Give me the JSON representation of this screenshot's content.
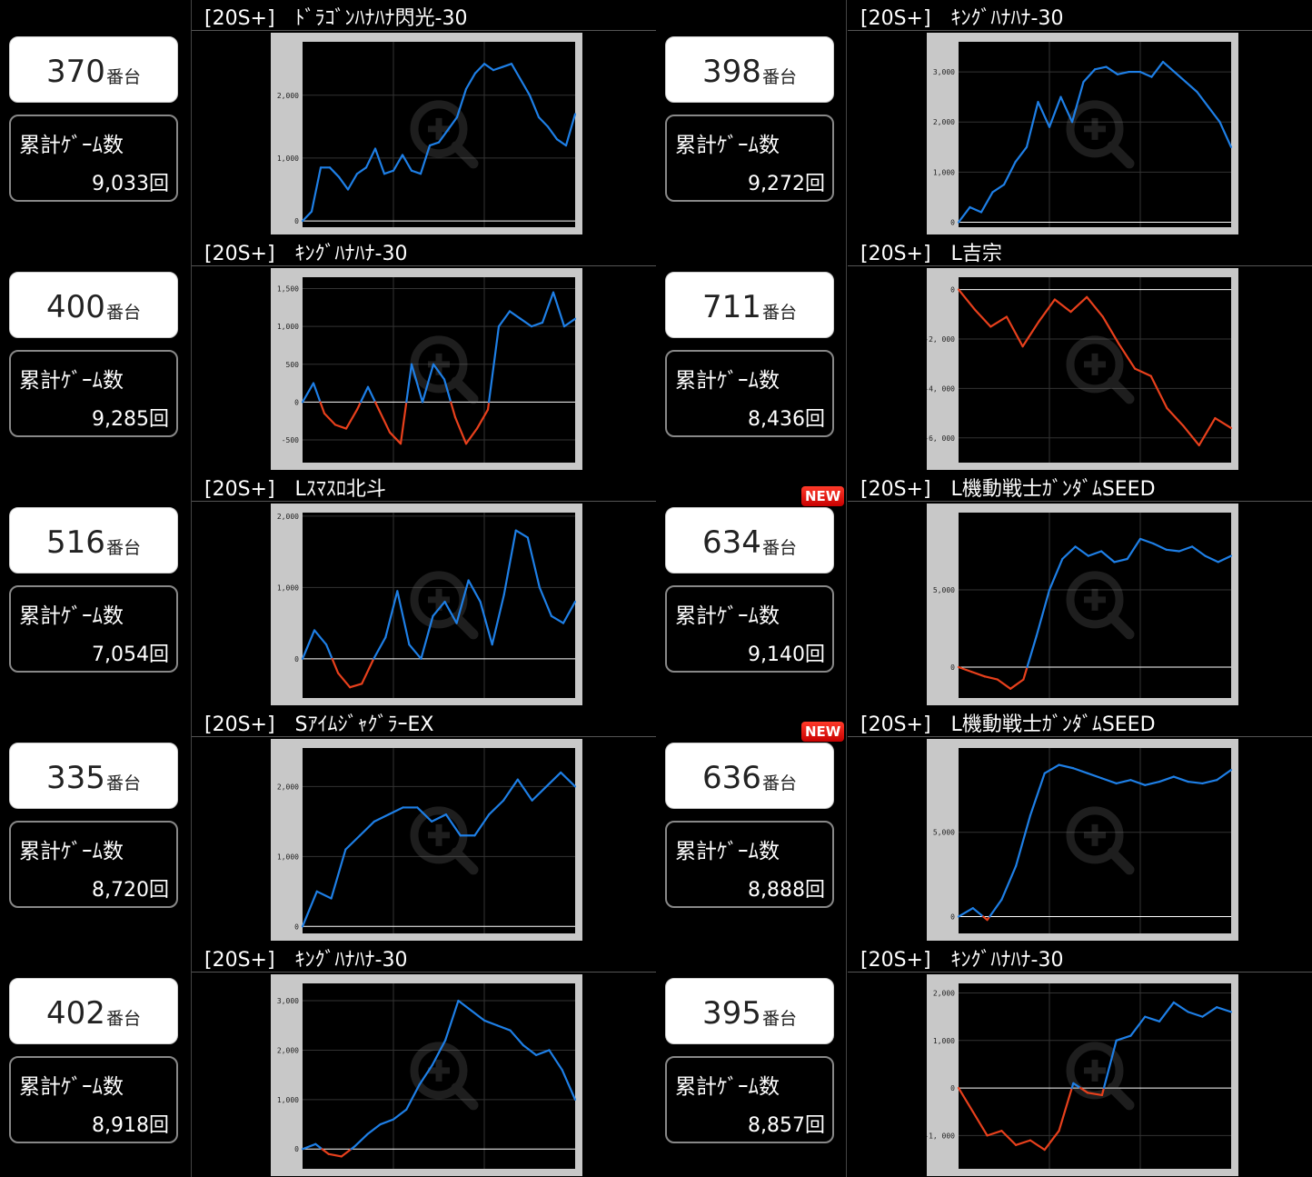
{
  "labels": {
    "games_label": "累計ｹﾞｰﾑ数",
    "unit_suffix": "番台",
    "count_suffix": "回",
    "new_badge": "NEW"
  },
  "colors": {
    "positive": "#1e7fe6",
    "negative": "#e8401c",
    "chart_bg": "#000000",
    "frame": "#c8c8c8"
  },
  "entries": [
    {
      "unit": "370",
      "games": "9,033",
      "title": "[20S+]　ﾄﾞﾗｺﾞﾝﾊﾅﾊﾅ閃光-30",
      "is_new": false,
      "chart_data": {
        "type": "line",
        "yticks": [
          0,
          1000,
          2000
        ],
        "ytick_labels": [
          "0",
          "1,000",
          "2,000"
        ],
        "ylim": [
          -100,
          2850
        ],
        "values": [
          0,
          150,
          850,
          850,
          700,
          500,
          750,
          850,
          1150,
          750,
          800,
          1050,
          800,
          750,
          1200,
          1250,
          1450,
          1650,
          2100,
          2350,
          2500,
          2400,
          2450,
          2500,
          2250,
          2000,
          1650,
          1500,
          1300,
          1200,
          1700
        ]
      }
    },
    {
      "unit": "398",
      "games": "9,272",
      "title": "[20S+]　ｷﾝｸﾞﾊﾅﾊﾅ-30",
      "is_new": false,
      "chart_data": {
        "type": "line",
        "yticks": [
          0,
          1000,
          2000,
          3000
        ],
        "ytick_labels": [
          "0",
          "1,000",
          "2,000",
          "3,000"
        ],
        "ylim": [
          -100,
          3600
        ],
        "values": [
          0,
          300,
          200,
          600,
          750,
          1200,
          1500,
          2400,
          1900,
          2500,
          2000,
          2800,
          3050,
          3100,
          2950,
          3000,
          3000,
          2900,
          3200,
          3000,
          2800,
          2600,
          2300,
          2000,
          1500
        ]
      }
    },
    {
      "unit": "400",
      "games": "9,285",
      "title": "[20S+]　ｷﾝｸﾞﾊﾅﾊﾅ-30",
      "is_new": false,
      "chart_data": {
        "type": "line",
        "yticks": [
          -500,
          0,
          500,
          1000,
          1500
        ],
        "ytick_labels": [
          "-500",
          "0",
          "500",
          "1,000",
          "1,500"
        ],
        "ylim": [
          -800,
          1650
        ],
        "values": [
          0,
          250,
          -150,
          -300,
          -350,
          -100,
          200,
          -100,
          -400,
          -550,
          500,
          0,
          500,
          300,
          -200,
          -550,
          -350,
          -100,
          1000,
          1200,
          1100,
          1000,
          1050,
          1450,
          1000,
          1100
        ]
      }
    },
    {
      "unit": "711",
      "games": "8,436",
      "title": "[20S+]　L吉宗",
      "is_new": false,
      "chart_data": {
        "type": "line",
        "yticks": [
          -6000,
          -4000,
          -2000,
          0
        ],
        "ytick_labels": [
          "-6, 000",
          "-4, 000",
          "-2, 000",
          "0"
        ],
        "ylim": [
          -7000,
          500
        ],
        "values": [
          0,
          -800,
          -1500,
          -1100,
          -2300,
          -1300,
          -400,
          -900,
          -300,
          -1100,
          -2200,
          -3200,
          -3500,
          -4800,
          -5500,
          -6300,
          -5200,
          -5600
        ]
      }
    },
    {
      "unit": "516",
      "games": "7,054",
      "title": "[20S+]　Lｽﾏｽﾛ北斗",
      "is_new": false,
      "chart_data": {
        "type": "line",
        "yticks": [
          0,
          1000,
          2000
        ],
        "ytick_labels": [
          "0",
          "1,000",
          "2,000"
        ],
        "ylim": [
          -550,
          2050
        ],
        "values": [
          0,
          400,
          200,
          -200,
          -400,
          -350,
          0,
          300,
          950,
          200,
          0,
          600,
          800,
          500,
          1100,
          800,
          200,
          900,
          1800,
          1700,
          1000,
          600,
          500,
          800
        ]
      }
    },
    {
      "unit": "634",
      "games": "9,140",
      "title": "[20S+]　L機動戦士ｶﾞﾝﾀﾞﾑSEED",
      "is_new": true,
      "chart_data": {
        "type": "line",
        "yticks": [
          0,
          5000
        ],
        "ytick_labels": [
          "0",
          "5,000"
        ],
        "ylim": [
          -2000,
          10000
        ],
        "values": [
          0,
          -300,
          -600,
          -800,
          -1400,
          -800,
          2000,
          5000,
          7000,
          7800,
          7200,
          7500,
          6800,
          7000,
          8300,
          8000,
          7600,
          7500,
          7800,
          7200,
          6800,
          7200
        ]
      }
    },
    {
      "unit": "335",
      "games": "8,720",
      "title": "[20S+]　SｱｲﾑｼﾞｬｸﾞﾗｰEX",
      "is_new": false,
      "chart_data": {
        "type": "line",
        "yticks": [
          0,
          1000,
          2000
        ],
        "ytick_labels": [
          "0",
          "1,000",
          "2,000"
        ],
        "ylim": [
          -100,
          2550
        ],
        "values": [
          0,
          500,
          400,
          1100,
          1300,
          1500,
          1600,
          1700,
          1700,
          1500,
          1600,
          1300,
          1300,
          1600,
          1800,
          2100,
          1800,
          2000,
          2200,
          2000
        ]
      }
    },
    {
      "unit": "636",
      "games": "8,888",
      "title": "[20S+]　L機動戦士ｶﾞﾝﾀﾞﾑSEED",
      "is_new": true,
      "chart_data": {
        "type": "line",
        "yticks": [
          0,
          5000
        ],
        "ytick_labels": [
          "0",
          "5,000"
        ],
        "ylim": [
          -1000,
          10000
        ],
        "values": [
          0,
          500,
          -200,
          1000,
          3000,
          6000,
          8500,
          9000,
          8800,
          8500,
          8200,
          7900,
          8100,
          7800,
          8000,
          8300,
          8000,
          7900,
          8100,
          8700
        ]
      }
    },
    {
      "unit": "402",
      "games": "8,918",
      "title": "[20S+]　ｷﾝｸﾞﾊﾅﾊﾅ-30",
      "is_new": false,
      "chart_data": {
        "type": "line",
        "yticks": [
          0,
          1000,
          2000,
          3000
        ],
        "ytick_labels": [
          "0",
          "1,000",
          "2,000",
          "3,000"
        ],
        "ylim": [
          -400,
          3350
        ],
        "values": [
          0,
          100,
          -100,
          -150,
          50,
          300,
          500,
          600,
          800,
          1300,
          1700,
          2200,
          3000,
          2800,
          2600,
          2500,
          2400,
          2100,
          1900,
          2000,
          1600,
          1000
        ]
      }
    },
    {
      "unit": "395",
      "games": "8,857",
      "title": "[20S+]　ｷﾝｸﾞﾊﾅﾊﾅ-30",
      "is_new": false,
      "chart_data": {
        "type": "line",
        "yticks": [
          -1000,
          0,
          1000,
          2000
        ],
        "ytick_labels": [
          "-1, 000",
          "0",
          "1,000",
          "2,000"
        ],
        "ylim": [
          -1700,
          2200
        ],
        "values": [
          0,
          -500,
          -1000,
          -900,
          -1200,
          -1100,
          -1300,
          -900,
          100,
          -100,
          -150,
          1000,
          1100,
          1500,
          1400,
          1800,
          1600,
          1500,
          1700,
          1600
        ]
      }
    }
  ]
}
